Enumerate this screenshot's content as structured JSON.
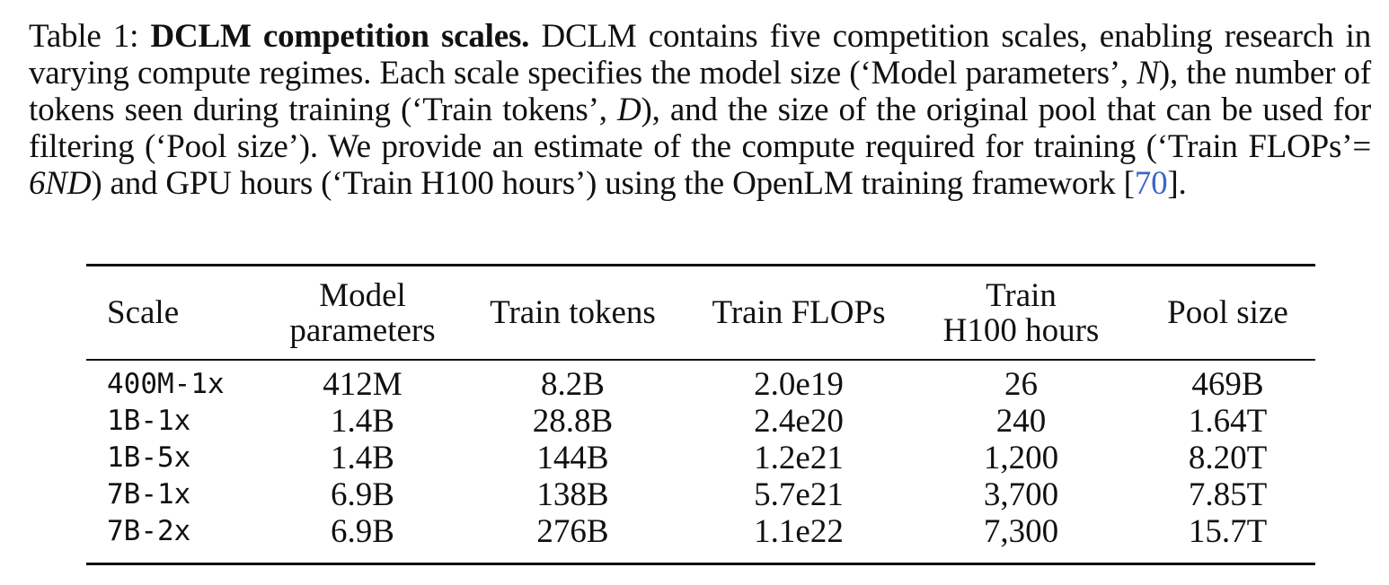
{
  "caption": {
    "label": "Table 1:",
    "title": "DCLM competition scales.",
    "text_1": "DCLM contains five competition scales, enabling research in varying compute regimes. Each scale specifies the model size (‘Model parameters’,",
    "math_N": "N",
    "text_2": "), the number of tokens seen during training (‘Train tokens’,",
    "math_D": "D",
    "text_3": "), and the size of the original pool that can be used for filtering (‘Pool size’). We provide an estimate of the compute required for training (‘Train FLOPs’=",
    "math_6ND": "6ND",
    "text_4": ") and GPU hours (‘Train H100 hours’) using the OpenLM training framework [",
    "cite": "70",
    "text_5": "]."
  },
  "table": {
    "headers": [
      {
        "line1": "Scale",
        "line2": ""
      },
      {
        "line1": "Model",
        "line2": "parameters"
      },
      {
        "line1": "Train tokens",
        "line2": ""
      },
      {
        "line1": "Train FLOPs",
        "line2": ""
      },
      {
        "line1": "Train",
        "line2": "H100 hours"
      },
      {
        "line1": "Pool size",
        "line2": ""
      }
    ],
    "rows": [
      [
        "400M-1x",
        "412M",
        "8.2B",
        "2.0e19",
        "26",
        "469B"
      ],
      [
        "1B-1x",
        "1.4B",
        "28.8B",
        "2.4e20",
        "240",
        "1.64T"
      ],
      [
        "1B-5x",
        "1.4B",
        "144B",
        "1.2e21",
        "1,200",
        "8.20T"
      ],
      [
        "7B-1x",
        "6.9B",
        "138B",
        "5.7e21",
        "3,700",
        "7.85T"
      ],
      [
        "7B-2x",
        "6.9B",
        "276B",
        "1.1e22",
        "7,300",
        "15.7T"
      ]
    ]
  }
}
